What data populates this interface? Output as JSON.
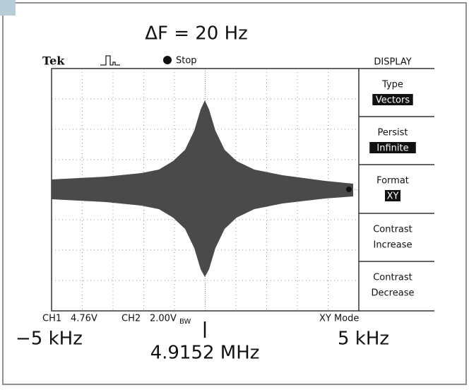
{
  "annotation": {
    "title": "ΔF = 20 Hz",
    "left": "−5 kHz",
    "right": "5 kHz",
    "center": "4.9152 MHz"
  },
  "header": {
    "brand": "Tek",
    "state": "Stop"
  },
  "menu": {
    "title": "DISPLAY",
    "items": [
      {
        "label": "Type",
        "value": "Vectors"
      },
      {
        "label": "Persist",
        "value": "Infinite"
      },
      {
        "label": "Format",
        "value": "XY"
      },
      {
        "label": "Contrast",
        "value": "Increase"
      },
      {
        "label": "Contrast",
        "value": "Decrease"
      }
    ]
  },
  "status": {
    "ch1": "CH1",
    "ch1_scale": "4.76V",
    "ch2": "CH2",
    "ch2_scale": "2.00V",
    "bandwidth": "BW",
    "mode": "XY Mode"
  }
}
